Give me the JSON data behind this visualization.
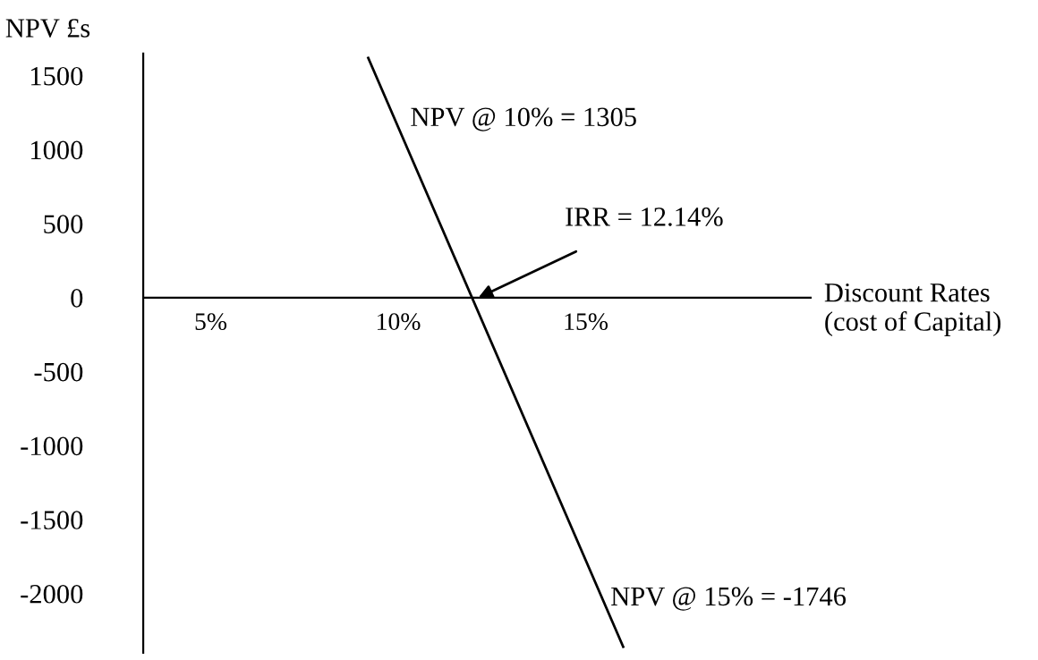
{
  "chart_data": {
    "type": "line",
    "xlabel": "Discount Rates\n(cost of Capital)",
    "ylabel": "NPV £s",
    "series": [
      {
        "x": [
          9.2,
          16
        ],
        "values": [
          1620,
          -2360
        ],
        "color": "#000000"
      }
    ],
    "xlim": [
      3.2,
      21
    ],
    "ylim": [
      -2400,
      1650
    ],
    "xticks": [
      {
        "value": 5,
        "label": "5%"
      },
      {
        "value": 10,
        "label": "10%"
      },
      {
        "value": 15,
        "label": "15%"
      }
    ],
    "yticks": [
      -2000,
      -1500,
      -1000,
      -500,
      0,
      500,
      1000,
      1500
    ],
    "grid": false,
    "legend": false,
    "marker": "none",
    "line_style": "solid",
    "annotations": [
      "NPV @ 10% = 1305",
      {
        "text": "IRR = 12.14%",
        "x": 12.14,
        "y": 0
      },
      "NPV @ 15% = -1746"
    ]
  }
}
